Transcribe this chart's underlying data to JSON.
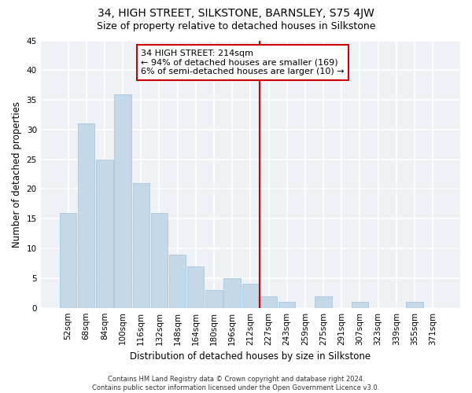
{
  "title": "34, HIGH STREET, SILKSTONE, BARNSLEY, S75 4JW",
  "subtitle": "Size of property relative to detached houses in Silkstone",
  "xlabel": "Distribution of detached houses by size in Silkstone",
  "ylabel": "Number of detached properties",
  "bar_labels": [
    "52sqm",
    "68sqm",
    "84sqm",
    "100sqm",
    "116sqm",
    "132sqm",
    "148sqm",
    "164sqm",
    "180sqm",
    "196sqm",
    "212sqm",
    "227sqm",
    "243sqm",
    "259sqm",
    "275sqm",
    "291sqm",
    "307sqm",
    "323sqm",
    "339sqm",
    "355sqm",
    "371sqm"
  ],
  "bar_values": [
    16,
    31,
    25,
    36,
    21,
    16,
    9,
    7,
    3,
    5,
    4,
    2,
    1,
    0,
    2,
    0,
    1,
    0,
    0,
    1,
    0
  ],
  "bar_color": "#c5d8e8",
  "bar_edgecolor": "#a8c8e0",
  "vline_x": 10.5,
  "vline_color": "#cc0000",
  "annotation_text": "34 HIGH STREET: 214sqm\n← 94% of detached houses are smaller (169)\n6% of semi-detached houses are larger (10) →",
  "ylim": [
    0,
    45
  ],
  "yticks": [
    0,
    5,
    10,
    15,
    20,
    25,
    30,
    35,
    40,
    45
  ],
  "footer": "Contains HM Land Registry data © Crown copyright and database right 2024.\nContains public sector information licensed under the Open Government Licence v3.0.",
  "bg_color": "#eef2f7",
  "grid_color": "#ffffff",
  "title_fontsize": 10,
  "subtitle_fontsize": 9,
  "tick_fontsize": 7.5,
  "ylabel_fontsize": 8.5,
  "xlabel_fontsize": 8.5,
  "footer_fontsize": 6,
  "ann_fontsize": 8
}
